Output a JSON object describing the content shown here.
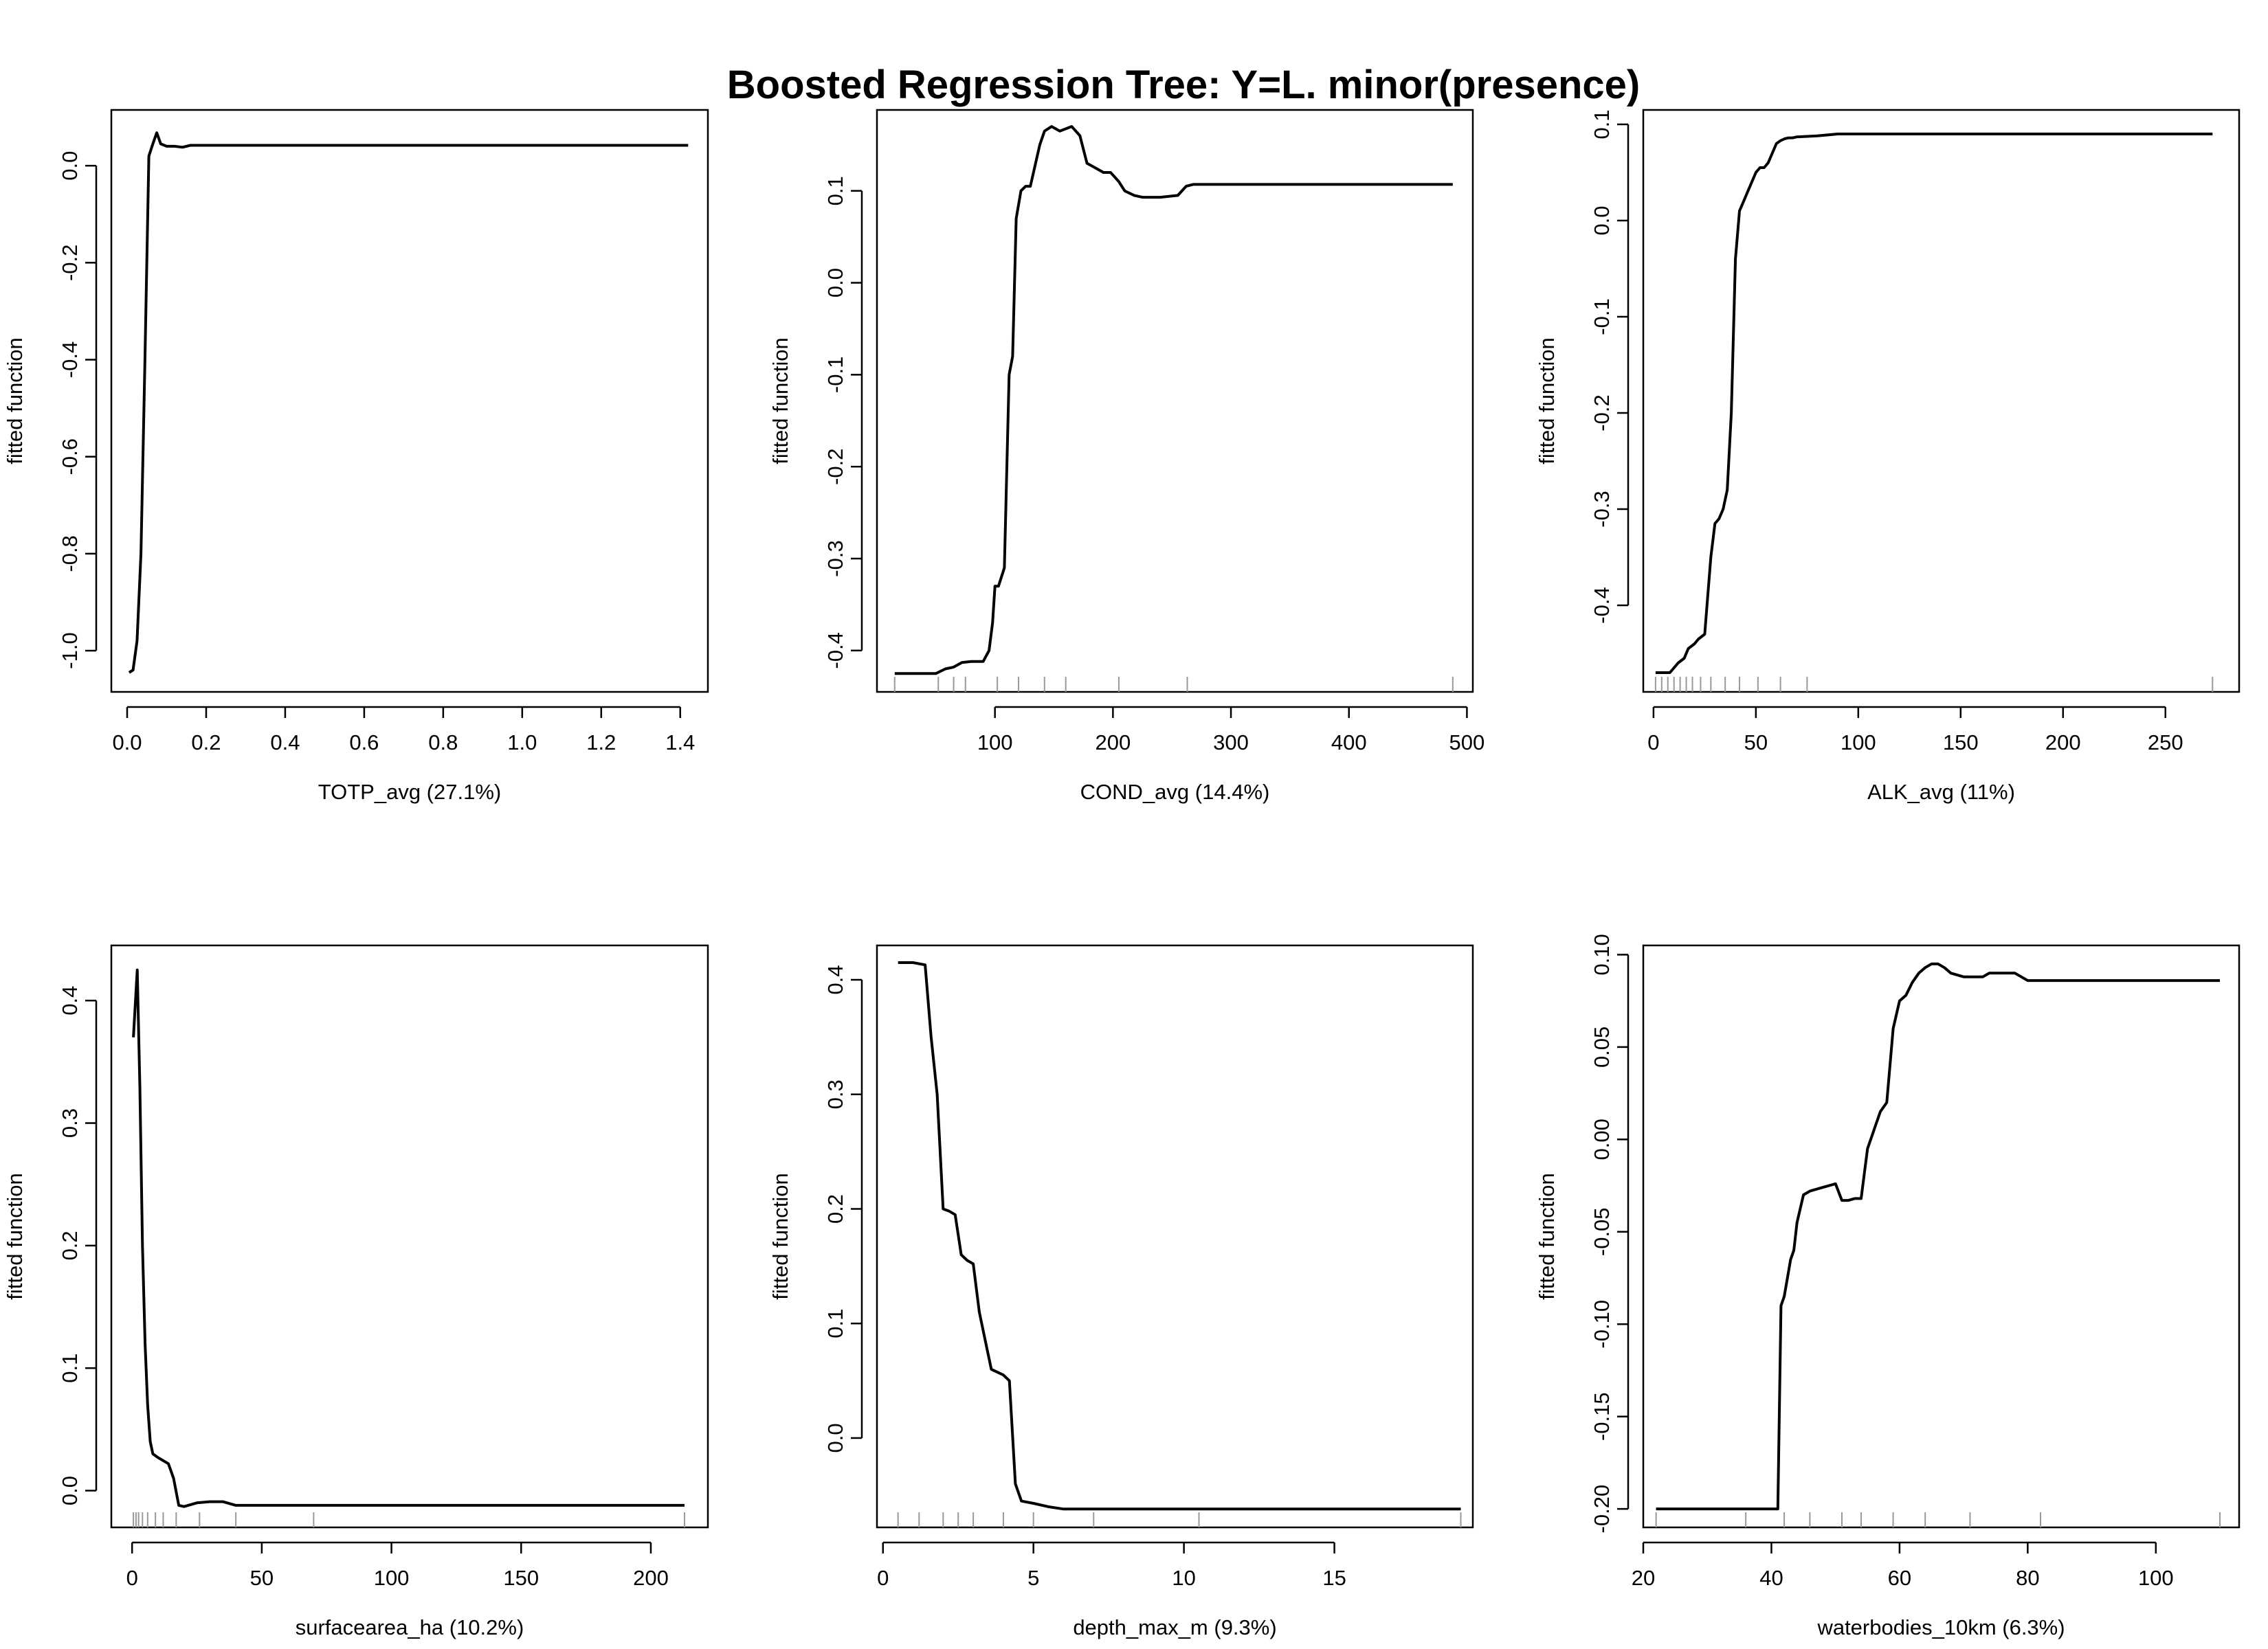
{
  "figure": {
    "title": "Boosted Regression Tree: Y=L. minor(presence)"
  },
  "chart_data": [
    {
      "type": "line",
      "xlabel": "TOTP_avg  (27.1%)",
      "ylabel": "fitted function",
      "xlim": [
        -0.04,
        1.47
      ],
      "ylim": [
        -1.085,
        0.115
      ],
      "xticks": [
        0.0,
        0.2,
        0.4,
        0.6,
        0.8,
        1.0,
        1.2,
        1.4
      ],
      "xtick_labels": [
        "0.0",
        "0.2",
        "0.4",
        "0.6",
        "0.8",
        "1.0",
        "1.2",
        "1.4"
      ],
      "yticks": [
        -1.0,
        -0.8,
        -0.6,
        -0.4,
        -0.2,
        0.0
      ],
      "ytick_labels": [
        "-1.0",
        "-0.8",
        "-0.6",
        "-0.4",
        "-0.2",
        "0.0"
      ],
      "rug": [],
      "series": [
        {
          "x": [
            0.005,
            0.015,
            0.025,
            0.035,
            0.045,
            0.055,
            0.065,
            0.075,
            0.085,
            0.1,
            0.12,
            0.14,
            0.16,
            0.2,
            0.4,
            0.8,
            1.2,
            1.42
          ],
          "y": [
            -1.045,
            -1.04,
            -0.98,
            -0.8,
            -0.4,
            0.02,
            0.045,
            0.068,
            0.045,
            0.04,
            0.04,
            0.038,
            0.042,
            0.042,
            0.042,
            0.042,
            0.042,
            0.042
          ]
        }
      ]
    },
    {
      "type": "line",
      "xlabel": "COND_avg  (14.4%)",
      "ylabel": "fitted function",
      "xlim": [
        0,
        505
      ],
      "ylim": [
        -0.445,
        0.188
      ],
      "xticks": [
        100,
        200,
        300,
        400,
        500
      ],
      "xtick_labels": [
        "100",
        "200",
        "300",
        "400",
        "500"
      ],
      "yticks": [
        -0.4,
        -0.3,
        -0.2,
        -0.1,
        0.0,
        0.1
      ],
      "ytick_labels": [
        "-0.4",
        "-0.3",
        "-0.2",
        "-0.1",
        "0.0",
        "0.1"
      ],
      "rug": [
        15,
        52,
        65,
        75,
        102,
        120,
        142,
        160,
        205,
        263,
        488
      ],
      "series": [
        {
          "x": [
            15,
            50,
            58,
            65,
            72,
            80,
            90,
            95,
            98,
            100,
            103,
            108,
            112,
            115,
            118,
            122,
            126,
            130,
            138,
            142,
            148,
            155,
            165,
            172,
            178,
            185,
            192,
            198,
            205,
            210,
            218,
            225,
            240,
            255,
            262,
            268,
            300,
            400,
            488
          ],
          "y": [
            -0.425,
            -0.425,
            -0.42,
            -0.418,
            -0.413,
            -0.412,
            -0.412,
            -0.4,
            -0.37,
            -0.33,
            -0.33,
            -0.31,
            -0.1,
            -0.08,
            0.07,
            0.1,
            0.105,
            0.105,
            0.15,
            0.165,
            0.17,
            0.165,
            0.17,
            0.16,
            0.13,
            0.125,
            0.12,
            0.12,
            0.11,
            0.1,
            0.095,
            0.093,
            0.093,
            0.095,
            0.105,
            0.107,
            0.107,
            0.107,
            0.107
          ]
        }
      ]
    },
    {
      "type": "line",
      "xlabel": "ALK_avg  (11%)",
      "ylabel": "fitted function",
      "xlim": [
        -5,
        286
      ],
      "ylim": [
        -0.49,
        0.115
      ],
      "xticks": [
        0,
        50,
        100,
        150,
        200,
        250
      ],
      "xtick_labels": [
        "0",
        "50",
        "100",
        "150",
        "200",
        "250"
      ],
      "yticks": [
        -0.4,
        -0.3,
        -0.2,
        -0.1,
        0.0,
        0.1
      ],
      "ytick_labels": [
        "-0.4",
        "-0.3",
        "-0.2",
        "-0.1",
        "0.0",
        "0.1"
      ],
      "rug": [
        1,
        4,
        7,
        10,
        13,
        16,
        19,
        23,
        28,
        35,
        42,
        51,
        62,
        75,
        273
      ],
      "series": [
        {
          "x": [
            1,
            8,
            10,
            12,
            15,
            17,
            20,
            22,
            25,
            28,
            30,
            32,
            34,
            36,
            38,
            40,
            42,
            44,
            46,
            48,
            50,
            52,
            54,
            56,
            58,
            60,
            62,
            64,
            66,
            68,
            70,
            80,
            90,
            150,
            273
          ],
          "y": [
            -0.47,
            -0.47,
            -0.465,
            -0.46,
            -0.455,
            -0.445,
            -0.44,
            -0.435,
            -0.43,
            -0.35,
            -0.315,
            -0.31,
            -0.3,
            -0.28,
            -0.2,
            -0.04,
            0.01,
            0.02,
            0.03,
            0.04,
            0.05,
            0.055,
            0.055,
            0.06,
            0.07,
            0.08,
            0.083,
            0.085,
            0.086,
            0.086,
            0.087,
            0.088,
            0.09,
            0.09,
            0.09
          ]
        }
      ]
    },
    {
      "type": "line",
      "xlabel": "surfacearea_ha  (10.2%)",
      "ylabel": "fitted function",
      "xlim": [
        -8,
        222
      ],
      "ylim": [
        -0.03,
        0.445
      ],
      "xticks": [
        0,
        50,
        100,
        150,
        200
      ],
      "xtick_labels": [
        "0",
        "50",
        "100",
        "150",
        "200"
      ],
      "yticks": [
        0.0,
        0.1,
        0.2,
        0.3,
        0.4
      ],
      "ytick_labels": [
        "0.0",
        "0.1",
        "0.2",
        "0.3",
        "0.4"
      ],
      "rug": [
        0.5,
        1.5,
        2.5,
        4,
        6,
        9,
        12,
        17,
        26,
        40,
        70,
        213
      ],
      "series": [
        {
          "x": [
            0.5,
            2,
            3,
            4,
            5,
            6,
            7,
            8,
            10,
            14,
            16,
            18,
            20,
            25,
            30,
            35,
            40,
            45,
            80,
            150,
            213
          ],
          "y": [
            0.37,
            0.425,
            0.33,
            0.2,
            0.12,
            0.07,
            0.04,
            0.03,
            0.027,
            0.022,
            0.01,
            -0.012,
            -0.013,
            -0.01,
            -0.009,
            -0.009,
            -0.012,
            -0.012,
            -0.012,
            -0.012,
            -0.012
          ]
        }
      ]
    },
    {
      "type": "line",
      "xlabel": "depth_max_m  (9.3%)",
      "ylabel": "fitted function",
      "xlim": [
        -0.2,
        19.6
      ],
      "ylim": [
        -0.078,
        0.43
      ],
      "xticks": [
        0,
        5,
        10,
        15
      ],
      "xtick_labels": [
        "0",
        "5",
        "10",
        "15"
      ],
      "yticks": [
        0.0,
        0.1,
        0.2,
        0.3,
        0.4
      ],
      "ytick_labels": [
        "0.0",
        "0.1",
        "0.2",
        "0.3",
        "0.4"
      ],
      "rug": [
        0.5,
        1.2,
        2.0,
        2.5,
        3.0,
        4.0,
        5.0,
        7.0,
        10.5,
        19.2
      ],
      "series": [
        {
          "x": [
            0.5,
            1.0,
            1.4,
            1.6,
            1.8,
            2.0,
            2.2,
            2.4,
            2.6,
            2.8,
            3.0,
            3.2,
            3.4,
            3.6,
            4.0,
            4.2,
            4.4,
            4.6,
            5.0,
            5.5,
            6.0,
            10,
            19.2
          ],
          "y": [
            0.415,
            0.415,
            0.413,
            0.35,
            0.3,
            0.2,
            0.198,
            0.195,
            0.16,
            0.155,
            0.152,
            0.11,
            0.085,
            0.06,
            0.055,
            0.05,
            -0.04,
            -0.055,
            -0.057,
            -0.06,
            -0.062,
            -0.062,
            -0.062
          ]
        }
      ]
    },
    {
      "type": "line",
      "xlabel": "waterbodies_10km  (6.3%)",
      "ylabel": "fitted function",
      "xlim": [
        20,
        113
      ],
      "ylim": [
        -0.21,
        0.105
      ],
      "xticks": [
        20,
        40,
        60,
        80,
        100
      ],
      "xtick_labels": [
        "20",
        "40",
        "60",
        "80",
        "100"
      ],
      "yticks": [
        -0.2,
        -0.15,
        -0.1,
        -0.05,
        0.0,
        0.05,
        0.1
      ],
      "ytick_labels": [
        "-0.20",
        "-0.15",
        "-0.10",
        "-0.05",
        "0.00",
        "0.05",
        "0.10"
      ],
      "rug": [
        22,
        36,
        42,
        46,
        51,
        54,
        59,
        64,
        71,
        82,
        110
      ],
      "series": [
        {
          "x": [
            22,
            38,
            40,
            41,
            41.5,
            42,
            43,
            43.5,
            44,
            45,
            46,
            48,
            50,
            51,
            52,
            53,
            54,
            55,
            56,
            57,
            58,
            59,
            60,
            61,
            62,
            63,
            64,
            65,
            66,
            67,
            68,
            70,
            73,
            74,
            76,
            78,
            79,
            80,
            85,
            110
          ],
          "y": [
            -0.2,
            -0.2,
            -0.2,
            -0.2,
            -0.09,
            -0.085,
            -0.065,
            -0.06,
            -0.045,
            -0.03,
            -0.028,
            -0.026,
            -0.024,
            -0.033,
            -0.033,
            -0.032,
            -0.032,
            -0.005,
            0.005,
            0.015,
            0.02,
            0.06,
            0.075,
            0.078,
            0.085,
            0.09,
            0.093,
            0.095,
            0.095,
            0.093,
            0.09,
            0.088,
            0.088,
            0.09,
            0.09,
            0.09,
            0.088,
            0.086,
            0.086,
            0.086
          ]
        }
      ]
    }
  ]
}
